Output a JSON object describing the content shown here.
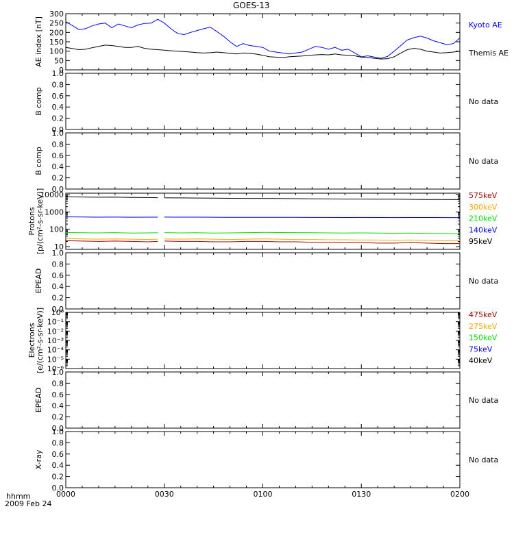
{
  "title": "GOES-13",
  "footer": {
    "line1": "hhmm",
    "line2": "2009 Feb 24"
  },
  "x_axis": {
    "range": [
      0,
      120
    ],
    "ticks": [
      0,
      30,
      60,
      90,
      120
    ],
    "tick_labels": [
      "0000",
      "0030",
      "0100",
      "0130",
      "0200"
    ]
  },
  "no_data_text": "No data",
  "colors": {
    "blue": "#0000ff",
    "black": "#000000",
    "red": "#a00000",
    "orange": "#ffa500",
    "green": "#00e000"
  },
  "chart_data": [
    {
      "type": "line",
      "name": "ae",
      "ylabel": "AE index [nT]",
      "ylim": [
        0,
        300
      ],
      "yticks": [
        0,
        50,
        100,
        150,
        200,
        250,
        300
      ],
      "yticklabels": [
        "0",
        "50",
        "100",
        "150",
        "200",
        "250",
        "300"
      ],
      "x": [
        0,
        4,
        6,
        8,
        10,
        12,
        14,
        16,
        18,
        20,
        22,
        24,
        26,
        28,
        30,
        32,
        34,
        36,
        38,
        40,
        42,
        44,
        46,
        48,
        50,
        52,
        54,
        56,
        58,
        60,
        62,
        64,
        66,
        68,
        70,
        72,
        74,
        76,
        78,
        80,
        82,
        84,
        86,
        88,
        90,
        92,
        94,
        96,
        98,
        100,
        102,
        104,
        106,
        108,
        110,
        112,
        114,
        116,
        118,
        120
      ],
      "series": [
        {
          "name": "Kyoto AE",
          "color": "#0000ff",
          "values": [
            258,
            215,
            220,
            235,
            245,
            250,
            225,
            245,
            235,
            225,
            240,
            248,
            250,
            270,
            250,
            220,
            195,
            188,
            200,
            210,
            220,
            228,
            205,
            180,
            150,
            125,
            140,
            130,
            125,
            120,
            100,
            95,
            90,
            85,
            90,
            95,
            110,
            125,
            120,
            110,
            120,
            105,
            110,
            90,
            70,
            75,
            68,
            62,
            72,
            100,
            130,
            160,
            172,
            180,
            170,
            155,
            145,
            135,
            140,
            170
          ]
        },
        {
          "name": "Themis AE",
          "color": "#000000",
          "values": [
            120,
            108,
            110,
            118,
            125,
            132,
            130,
            125,
            120,
            120,
            125,
            115,
            110,
            108,
            105,
            102,
            100,
            98,
            95,
            92,
            90,
            92,
            95,
            92,
            88,
            85,
            90,
            88,
            84,
            78,
            70,
            68,
            66,
            70,
            72,
            74,
            78,
            80,
            82,
            80,
            85,
            80,
            78,
            75,
            68,
            66,
            62,
            58,
            60,
            70,
            90,
            108,
            115,
            110,
            100,
            95,
            90,
            92,
            95,
            100
          ]
        }
      ],
      "legend": [
        "Kyoto AE",
        "Themis AE"
      ]
    },
    {
      "type": "line",
      "name": "bcomp1",
      "ylabel": "B comp",
      "ylim": [
        0,
        1
      ],
      "yticks": [
        0,
        0.2,
        0.4,
        0.6,
        0.8,
        1.0
      ],
      "yticklabels": [
        "0.0",
        "0.2",
        "0.4",
        "0.6",
        "0.8",
        "1.0"
      ],
      "series": [],
      "status": "No data"
    },
    {
      "type": "line",
      "name": "bcomp2",
      "ylabel": "B comp",
      "ylim": [
        0,
        1
      ],
      "yticks": [
        0,
        0.2,
        0.4,
        0.6,
        0.8,
        1.0
      ],
      "yticklabels": [
        "0.0",
        "0.2",
        "0.4",
        "0.6",
        "0.8",
        "1.0"
      ],
      "series": [],
      "status": "No data"
    },
    {
      "type": "line",
      "name": "protons",
      "ylabel_line1": "Protons",
      "ylabel_line2": "[p/(cm²-s-sr-keV)]",
      "yscale": "log",
      "ylim": [
        7,
        12000
      ],
      "yticks": [
        10,
        100,
        1000,
        10000
      ],
      "yticklabels": [
        "10",
        "100",
        "1000",
        "10000"
      ],
      "x": [
        0,
        5,
        10,
        15,
        20,
        25,
        28,
        30,
        35,
        40,
        45,
        50,
        55,
        60,
        65,
        70,
        75,
        80,
        85,
        90,
        95,
        100,
        105,
        110,
        115,
        120
      ],
      "gap": [
        28,
        30
      ],
      "series": [
        {
          "name": "95keV",
          "color": "#000000",
          "values": [
            7500,
            7200,
            7000,
            7100,
            6800,
            6700,
            6600,
            6500,
            6400,
            6300,
            6200,
            6100,
            6000,
            6000,
            5900,
            5800,
            5700,
            5600,
            5500,
            5500,
            5400,
            5400,
            5300,
            5200,
            5200,
            5100
          ]
        },
        {
          "name": "140keV",
          "color": "#0000ff",
          "values": [
            520,
            510,
            500,
            505,
            495,
            500,
            498,
            505,
            500,
            498,
            495,
            490,
            492,
            488,
            485,
            486,
            484,
            480,
            478,
            480,
            476,
            474,
            478,
            476,
            472,
            470
          ]
        },
        {
          "name": "210keV",
          "color": "#00e000",
          "values": [
            65,
            63,
            62,
            64,
            61,
            62,
            63,
            64,
            62,
            63,
            61,
            62,
            64,
            66,
            65,
            64,
            63,
            62,
            61,
            62,
            60,
            59,
            60,
            58,
            57,
            56
          ]
        },
        {
          "name": "300keV",
          "color": "#ffa500",
          "values": [
            30,
            28,
            27,
            28,
            27,
            26,
            27,
            28,
            27,
            28,
            27,
            26,
            27,
            28,
            27,
            26,
            26,
            25,
            25,
            24,
            24,
            23,
            24,
            23,
            22,
            22
          ]
        },
        {
          "name": "575keV",
          "color": "#a00000",
          "values": [
            22,
            21,
            20,
            21,
            20,
            19,
            20,
            21,
            20,
            20,
            19,
            19,
            20,
            20,
            19,
            19,
            18,
            18,
            17,
            17,
            16,
            16,
            17,
            16,
            15,
            15
          ]
        }
      ],
      "legend": [
        "575keV",
        "300keV",
        "210keV",
        "140keV",
        "95keV"
      ]
    },
    {
      "type": "line",
      "name": "epead1",
      "ylabel": "EPEAD",
      "ylim": [
        0,
        1
      ],
      "yticks": [
        0,
        0.2,
        0.4,
        0.6,
        0.8,
        1.0
      ],
      "yticklabels": [
        "0.0",
        "0.2",
        "0.4",
        "0.6",
        "0.8",
        "1.0"
      ],
      "series": [],
      "status": "No data"
    },
    {
      "type": "line",
      "name": "electrons",
      "ylabel_line1": "Electrons",
      "ylabel_line2": "[e/(cm²-s-sr-keV)]",
      "yscale": "log",
      "ylim": [
        1e-06,
        1
      ],
      "yticks": [
        1,
        0.1,
        0.01,
        0.001,
        0.0001,
        1e-05,
        1e-06
      ],
      "yticklabels": [
        "10⁰",
        "10⁻¹",
        "10⁻²",
        "10⁻³",
        "10⁻⁴",
        "10⁻⁵",
        "10⁻⁶"
      ],
      "series": [],
      "legend": [
        "475keV",
        "275keV",
        "150keV",
        "75keV",
        "40keV"
      ],
      "legend_colors": [
        "#a00000",
        "#ffa500",
        "#00e000",
        "#0000ff",
        "#000000"
      ]
    },
    {
      "type": "line",
      "name": "epead2",
      "ylabel": "EPEAD",
      "ylim": [
        0,
        1
      ],
      "yticks": [
        0,
        0.2,
        0.4,
        0.6,
        0.8,
        1.0
      ],
      "yticklabels": [
        "0.0",
        "0.2",
        "0.4",
        "0.6",
        "0.8",
        "1.0"
      ],
      "series": [],
      "status": "No data"
    },
    {
      "type": "line",
      "name": "xray",
      "ylabel": "X-ray",
      "ylim": [
        0,
        1
      ],
      "yticks": [
        0,
        0.2,
        0.4,
        0.6,
        0.8,
        1.0
      ],
      "yticklabels": [
        "0.0",
        "0.2",
        "0.4",
        "0.6",
        "0.8",
        "1.0"
      ],
      "series": [],
      "status": "No data"
    }
  ]
}
